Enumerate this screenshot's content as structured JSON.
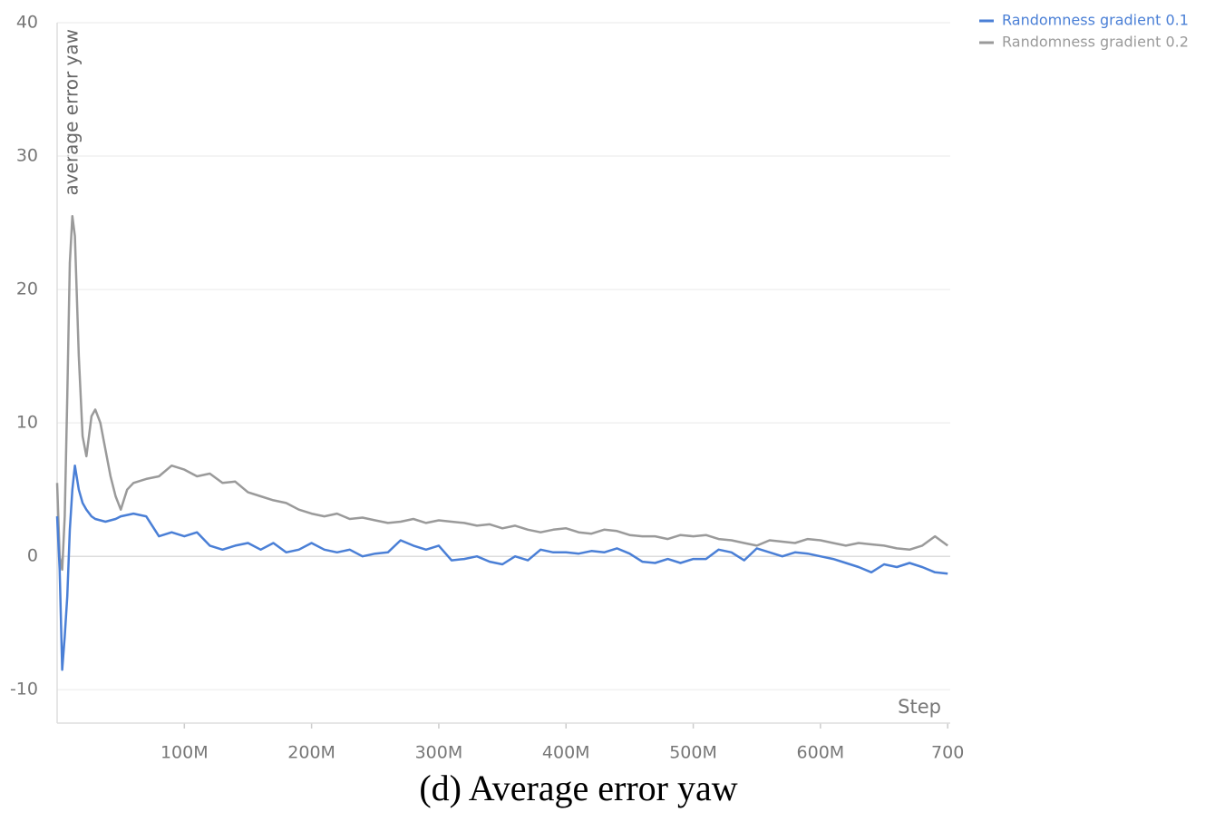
{
  "chart_data": {
    "type": "line",
    "y_label": "average error yaw",
    "x_label": "Step",
    "caption": "(d) Average error yaw",
    "legend": "top-right",
    "grid": true,
    "xlim": [
      0,
      702
    ],
    "ylim": [
      -12.5,
      40
    ],
    "xticks": [
      {
        "value": 100,
        "label": "100M"
      },
      {
        "value": 200,
        "label": "200M"
      },
      {
        "value": 300,
        "label": "300M"
      },
      {
        "value": 400,
        "label": "400M"
      },
      {
        "value": 500,
        "label": "500M"
      },
      {
        "value": 600,
        "label": "600M"
      },
      700
    ],
    "yticks": [
      -10,
      0,
      10,
      20,
      30,
      40
    ],
    "x": [
      0,
      2,
      4,
      6,
      8,
      10,
      12,
      14,
      17,
      20,
      23,
      27,
      30,
      34,
      38,
      42,
      46,
      50,
      55,
      60,
      70,
      80,
      90,
      100,
      110,
      120,
      130,
      140,
      150,
      160,
      170,
      180,
      190,
      200,
      210,
      220,
      230,
      240,
      250,
      260,
      270,
      280,
      290,
      300,
      310,
      320,
      330,
      340,
      350,
      360,
      370,
      380,
      390,
      400,
      410,
      420,
      430,
      440,
      450,
      460,
      470,
      480,
      490,
      500,
      510,
      520,
      530,
      540,
      550,
      560,
      570,
      580,
      590,
      600,
      610,
      620,
      630,
      640,
      650,
      660,
      670,
      680,
      690,
      700
    ],
    "series": [
      {
        "name": "Randomness gradient 0.1",
        "color": "#4a7fd6",
        "values": [
          3,
          -1,
          -8.5,
          -6,
          -3,
          2,
          5,
          6.8,
          5,
          4,
          3.5,
          3,
          2.8,
          2.7,
          2.6,
          2.7,
          2.8,
          3,
          3.1,
          3.2,
          3,
          1.5,
          1.8,
          1.5,
          1.8,
          0.8,
          0.5,
          0.8,
          1,
          0.5,
          1,
          0.3,
          0.5,
          1,
          0.5,
          0.3,
          0.5,
          0,
          0.2,
          0.3,
          1.2,
          0.8,
          0.5,
          0.8,
          -0.3,
          -0.2,
          0,
          -0.4,
          -0.6,
          0,
          -0.3,
          0.5,
          0.3,
          0.3,
          0.2,
          0.4,
          0.3,
          0.6,
          0.2,
          -0.4,
          -0.5,
          -0.2,
          -0.5,
          -0.2,
          -0.2,
          0.5,
          0.3,
          -0.3,
          0.6,
          0.3,
          0,
          0.3,
          0.2,
          0,
          -0.2,
          -0.5,
          -0.8,
          -1.2,
          -0.6,
          -0.8,
          -0.5,
          -0.8,
          -1.2,
          -1.3
        ]
      },
      {
        "name": "Randomness gradient 0.2",
        "color": "#9a9a9a",
        "values": [
          5.5,
          0,
          -1,
          3,
          12,
          22,
          25.5,
          24,
          15,
          9,
          7.5,
          10.5,
          11,
          10,
          8,
          6,
          4.5,
          3.5,
          5,
          5.5,
          5.8,
          6,
          6.8,
          6.5,
          6,
          6.2,
          5.5,
          5.6,
          4.8,
          4.5,
          4.2,
          4,
          3.5,
          3.2,
          3,
          3.2,
          2.8,
          2.9,
          2.7,
          2.5,
          2.6,
          2.8,
          2.5,
          2.7,
          2.6,
          2.5,
          2.3,
          2.4,
          2.1,
          2.3,
          2,
          1.8,
          2,
          2.1,
          1.8,
          1.7,
          2,
          1.9,
          1.6,
          1.5,
          1.5,
          1.3,
          1.6,
          1.5,
          1.6,
          1.3,
          1.2,
          1,
          0.8,
          1.2,
          1.1,
          1,
          1.3,
          1.2,
          1,
          0.8,
          1,
          0.9,
          0.8,
          0.6,
          0.5,
          0.8,
          1.5,
          0.8
        ]
      }
    ]
  }
}
